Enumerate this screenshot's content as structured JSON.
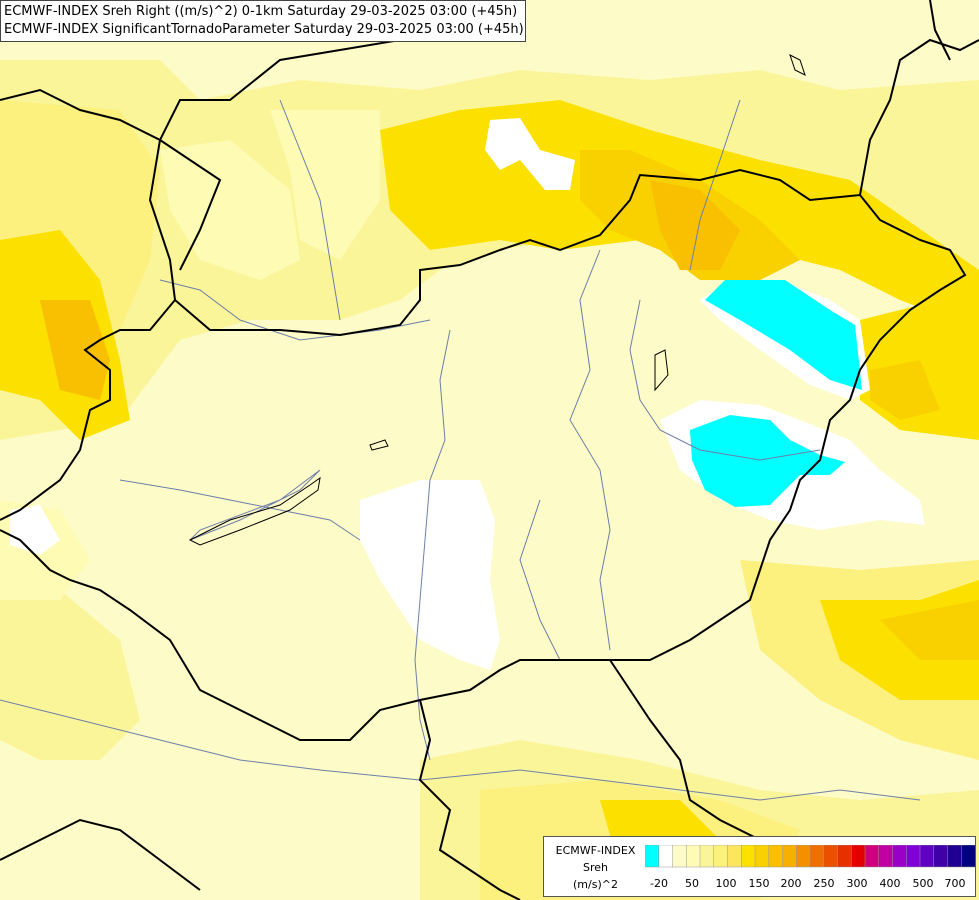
{
  "title": {
    "line1": "ECMWF-INDEX Sreh Right ((m/s)^2) 0-1km Saturday 29-03-2025 03:00 (+45h)",
    "line2": "ECMWF-INDEX SignificantTornadoParameter Saturday 29-03-2025 03:00 (+45h)"
  },
  "legend": {
    "source": "ECMWF-INDEX",
    "param": "Sreh",
    "unit": "(m/s)^2",
    "colors": [
      "#00ffff",
      "#ffffff",
      "#fdfbc8",
      "#fdfbb4",
      "#fbf59a",
      "#fcf07e",
      "#fbe65e",
      "#fce000",
      "#f9d000",
      "#f8c000",
      "#f7b000",
      "#f29000",
      "#ee7000",
      "#ea5000",
      "#e63000",
      "#e20000",
      "#d0007a",
      "#c000a0",
      "#9800c8",
      "#8000d8",
      "#6000c0",
      "#4000a8",
      "#200090",
      "#000080"
    ],
    "ticks": [
      "-20",
      "50",
      "100",
      "150",
      "200",
      "250",
      "300",
      "400",
      "500",
      "700"
    ]
  }
}
